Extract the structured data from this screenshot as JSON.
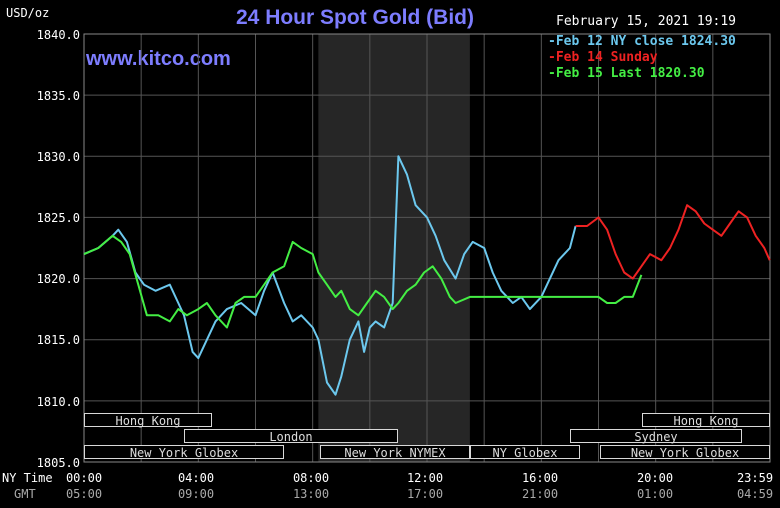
{
  "title": "24 Hour Spot Gold (Bid)",
  "brand": "www.kitco.com",
  "unit": "USD/oz",
  "timestamp": "February 15, 2021 19:19",
  "row_labels": {
    "ny": "NY Time",
    "gmt": "GMT"
  },
  "legend": [
    {
      "label": "Feb 12 NY close 1824.30",
      "color": "#6cc8ee"
    },
    {
      "label": "Feb 14 Sunday",
      "color": "#ee2222"
    },
    {
      "label": "Feb 15 Last 1820.30",
      "color": "#44ee44"
    }
  ],
  "sessions": [
    {
      "name": "Hong Kong",
      "start": 0.0,
      "end": 4.5
    },
    {
      "name": "London",
      "start": 3.5,
      "end": 11.5
    },
    {
      "name": "New York Globex",
      "start": 0.0,
      "end": 7.0
    },
    {
      "name": "New York NYMEX",
      "start": 8.2,
      "end": 13.5
    },
    {
      "name": "NY Globex",
      "start": 13.5,
      "end": 17.0
    },
    {
      "name": "Hong Kong",
      "start": 19.5,
      "end": 24.0
    },
    {
      "name": "Sydney",
      "start": 17.0,
      "end": 23.0
    },
    {
      "name": "New York Globex",
      "start": 18.0,
      "end": 24.0
    }
  ],
  "chart_data": {
    "type": "line",
    "title": "24 Hour Spot Gold (Bid)",
    "ylabel": "USD/oz",
    "ylim": [
      1805,
      1840
    ],
    "y_ticks": [
      "1840.0",
      "1835.0",
      "1830.0",
      "1825.0",
      "1820.0",
      "1815.0",
      "1810.0",
      "1805.0"
    ],
    "x_ticks_ny": [
      "00:00",
      "04:00",
      "08:00",
      "12:00",
      "16:00",
      "20:00",
      "23:59"
    ],
    "x_ticks_gmt": [
      "05:00",
      "09:00",
      "13:00",
      "17:00",
      "21:00",
      "01:00",
      "04:59"
    ],
    "highlight_hours": [
      8.2,
      13.5
    ],
    "series": [
      {
        "name": "Feb 12 NY close 1824.30",
        "color": "#6cc8ee",
        "x": [
          0,
          0.5,
          1,
          1.2,
          1.5,
          1.8,
          2.1,
          2.5,
          3,
          3.3,
          3.5,
          3.8,
          4,
          4.3,
          4.6,
          5,
          5.5,
          6,
          6.3,
          6.6,
          7,
          7.3,
          7.6,
          8,
          8.2,
          8.5,
          8.8,
          9,
          9.3,
          9.6,
          9.8,
          10,
          10.2,
          10.5,
          10.8,
          11,
          11.3,
          11.6,
          12,
          12.3,
          12.6,
          13,
          13.3,
          13.6,
          14,
          14.3,
          14.6,
          15,
          15.3,
          15.6,
          16,
          16.3,
          16.6,
          17,
          17.2
        ],
        "y": [
          1822,
          1822.5,
          1823.5,
          1824,
          1823,
          1820.5,
          1819.5,
          1819,
          1819.5,
          1818,
          1817,
          1814,
          1813.5,
          1815,
          1816.5,
          1817.5,
          1818,
          1817,
          1819,
          1820.5,
          1818,
          1816.5,
          1817,
          1816,
          1815,
          1811.5,
          1810.5,
          1812,
          1815,
          1816.5,
          1814,
          1816,
          1816.5,
          1816,
          1818,
          1830,
          1828.5,
          1826,
          1825,
          1823.5,
          1821.5,
          1820,
          1822,
          1823,
          1822.5,
          1820.5,
          1819,
          1818,
          1818.5,
          1817.5,
          1818.5,
          1820,
          1821.5,
          1822.5,
          1824.3
        ]
      },
      {
        "name": "Feb 14 Sunday",
        "color": "#ee2222",
        "x": [
          17.2,
          17.6,
          18,
          18.3,
          18.6,
          18.9,
          19.2,
          19.5,
          19.8,
          20.2,
          20.5,
          20.8,
          21.1,
          21.4,
          21.7,
          22,
          22.3,
          22.6,
          22.9,
          23.2,
          23.5,
          23.8,
          23.99
        ],
        "y": [
          1824.3,
          1824.3,
          1825,
          1824,
          1822,
          1820.5,
          1820,
          1821,
          1822,
          1821.5,
          1822.5,
          1824,
          1826,
          1825.5,
          1824.5,
          1824,
          1823.5,
          1824.5,
          1825.5,
          1825,
          1823.5,
          1822.5,
          1821.5
        ]
      },
      {
        "name": "Feb 15 Last 1820.30",
        "color": "#44ee44",
        "x": [
          0,
          0.5,
          1,
          1.3,
          1.6,
          1.9,
          2.2,
          2.6,
          3,
          3.3,
          3.6,
          4,
          4.3,
          4.6,
          5,
          5.3,
          5.6,
          6,
          6.3,
          6.6,
          7,
          7.3,
          7.6,
          8,
          8.2,
          8.5,
          8.8,
          9,
          9.3,
          9.6,
          9.9,
          10.2,
          10.5,
          10.8,
          11,
          11.3,
          11.6,
          11.9,
          12.2,
          12.5,
          12.8,
          13,
          13.5,
          14,
          15,
          16,
          17,
          17.5,
          18,
          18.3,
          18.6,
          18.9,
          19.2,
          19.5
        ],
        "y": [
          1822,
          1822.5,
          1823.5,
          1823,
          1822,
          1819.5,
          1817,
          1817,
          1816.5,
          1817.5,
          1817,
          1817.5,
          1818,
          1817,
          1816,
          1818,
          1818.5,
          1818.5,
          1819.5,
          1820.5,
          1821,
          1823,
          1822.5,
          1822,
          1820.5,
          1819.5,
          1818.5,
          1819,
          1817.5,
          1817,
          1818,
          1819,
          1818.5,
          1817.5,
          1818,
          1819,
          1819.5,
          1820.5,
          1821,
          1820,
          1818.5,
          1818,
          1818.5,
          1818.5,
          1818.5,
          1818.5,
          1818.5,
          1818.5,
          1818.5,
          1818,
          1818,
          1818.5,
          1818.5,
          1820.3
        ]
      }
    ]
  }
}
